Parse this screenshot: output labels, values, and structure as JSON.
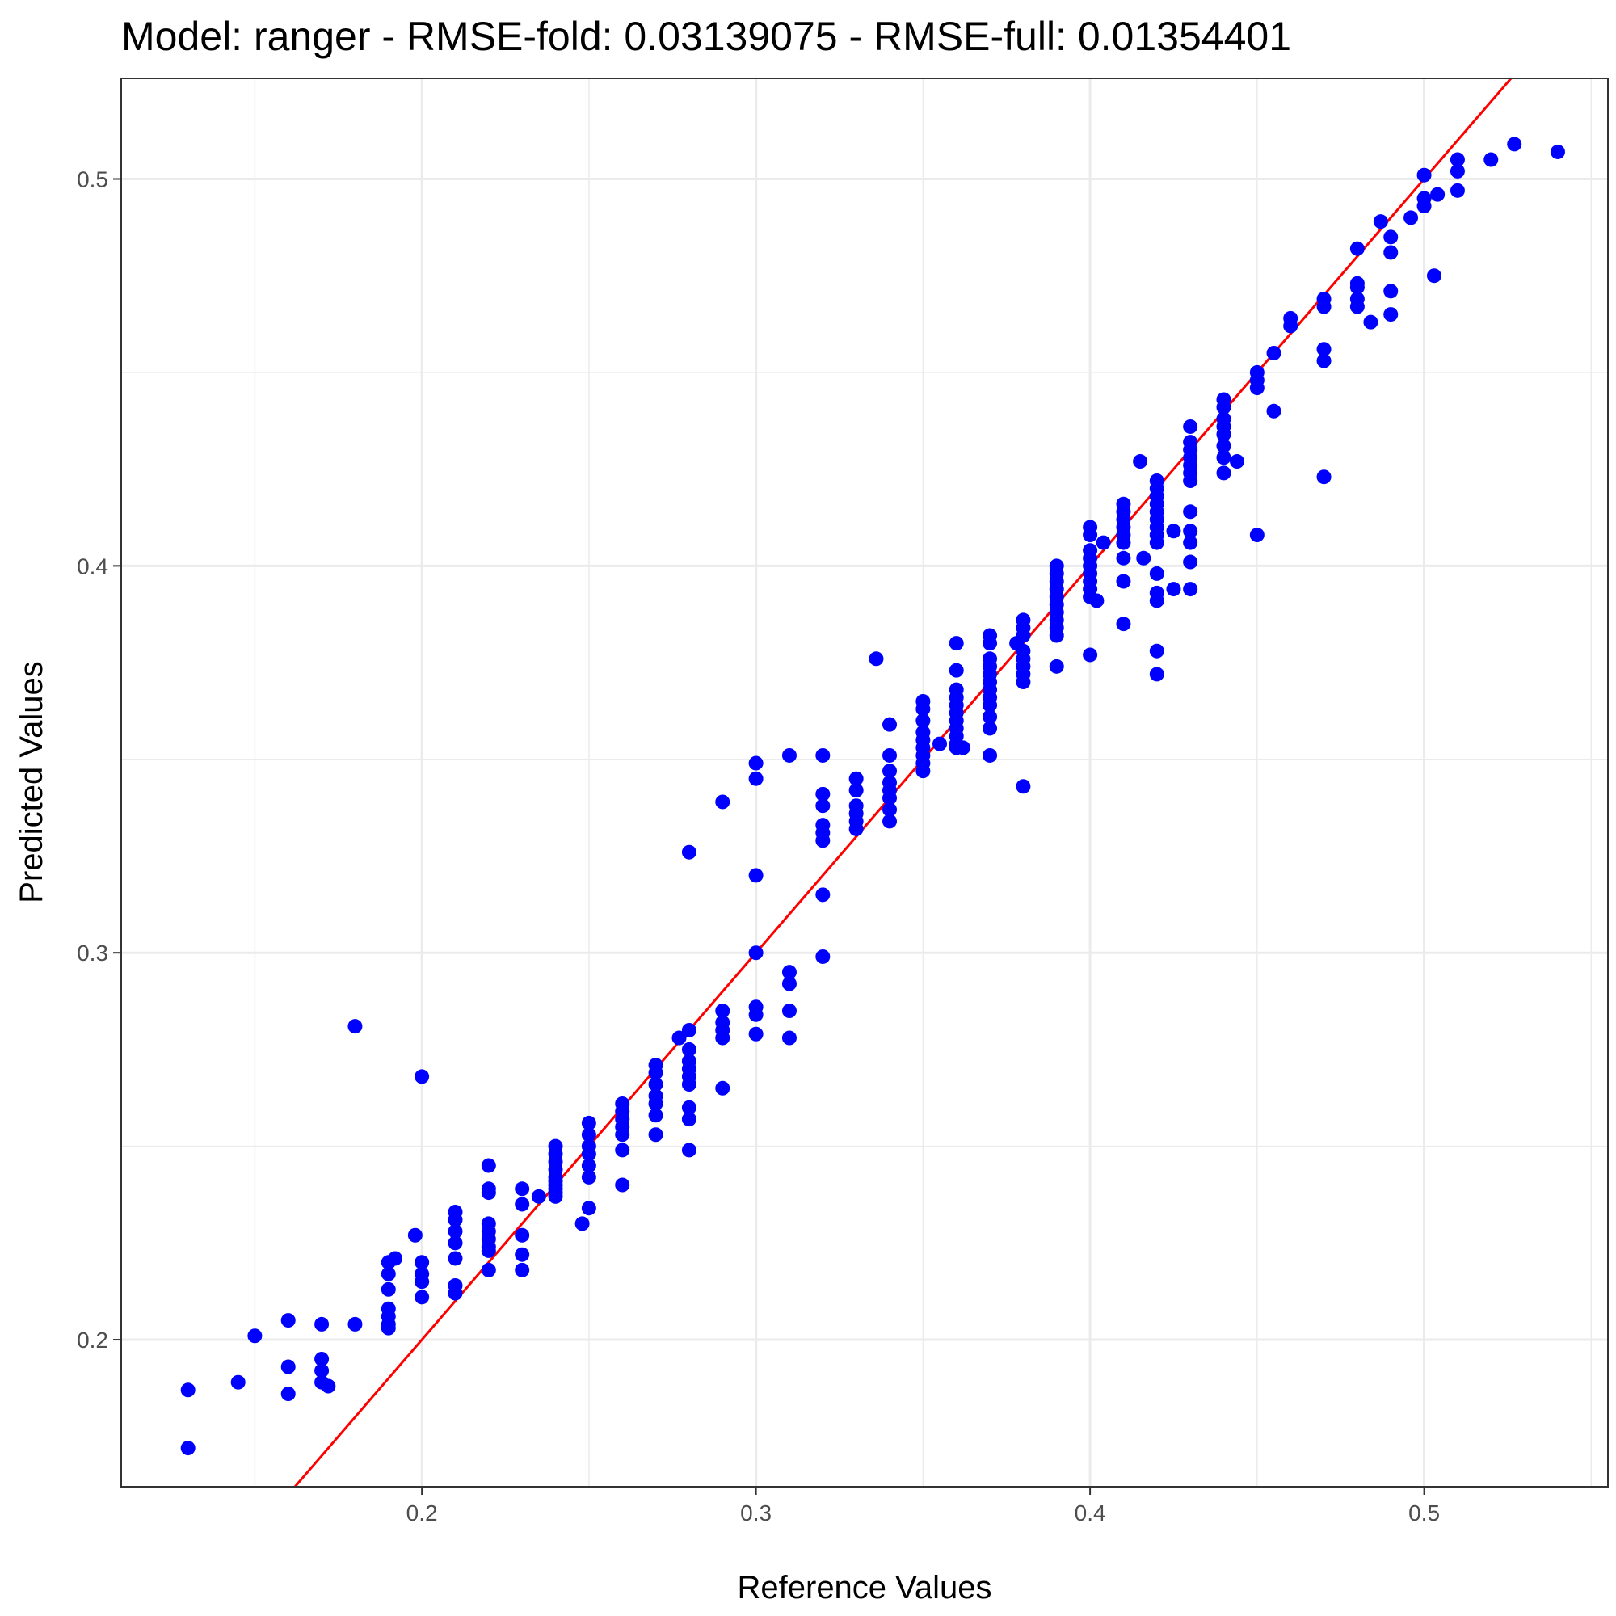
{
  "chart_data": {
    "type": "scatter",
    "title": "Model: ranger - RMSE-fold: 0.03139075 - RMSE-full: 0.01354401",
    "xlabel": "Reference Values",
    "ylabel": "Predicted Values",
    "xlim": [
      0.11,
      0.555
    ],
    "ylim": [
      0.162,
      0.526
    ],
    "x_ticks": [
      0.2,
      0.3,
      0.4,
      0.5
    ],
    "y_ticks": [
      0.2,
      0.3,
      0.4,
      0.5
    ],
    "x_tick_labels": [
      "0.2",
      "0.3",
      "0.4",
      "0.5"
    ],
    "y_tick_labels": [
      "0.2",
      "0.3",
      "0.4",
      "0.5"
    ],
    "x_minor_ticks": [
      0.15,
      0.25,
      0.35,
      0.45,
      0.55
    ],
    "y_minor_ticks": [
      0.25,
      0.35,
      0.45
    ],
    "grid": true,
    "theme": "bw",
    "point_color": "#0000ff",
    "reference_line": {
      "type": "identity",
      "slope": 1,
      "intercept": 0,
      "color": "#ff0000"
    },
    "series": [
      {
        "points": [
          [
            0.13,
            0.187
          ],
          [
            0.13,
            0.172
          ],
          [
            0.145,
            0.189
          ],
          [
            0.15,
            0.201
          ],
          [
            0.16,
            0.205
          ],
          [
            0.16,
            0.193
          ],
          [
            0.16,
            0.186
          ],
          [
            0.17,
            0.204
          ],
          [
            0.17,
            0.195
          ],
          [
            0.17,
            0.192
          ],
          [
            0.17,
            0.189
          ],
          [
            0.172,
            0.188
          ],
          [
            0.18,
            0.204
          ],
          [
            0.18,
            0.281
          ],
          [
            0.19,
            0.22
          ],
          [
            0.19,
            0.217
          ],
          [
            0.19,
            0.213
          ],
          [
            0.19,
            0.208
          ],
          [
            0.19,
            0.206
          ],
          [
            0.19,
            0.204
          ],
          [
            0.19,
            0.203
          ],
          [
            0.192,
            0.221
          ],
          [
            0.198,
            0.227
          ],
          [
            0.2,
            0.22
          ],
          [
            0.2,
            0.217
          ],
          [
            0.2,
            0.215
          ],
          [
            0.2,
            0.211
          ],
          [
            0.2,
            0.268
          ],
          [
            0.21,
            0.233
          ],
          [
            0.21,
            0.231
          ],
          [
            0.21,
            0.228
          ],
          [
            0.21,
            0.225
          ],
          [
            0.21,
            0.221
          ],
          [
            0.21,
            0.214
          ],
          [
            0.21,
            0.212
          ],
          [
            0.22,
            0.245
          ],
          [
            0.22,
            0.239
          ],
          [
            0.22,
            0.238
          ],
          [
            0.22,
            0.23
          ],
          [
            0.22,
            0.228
          ],
          [
            0.22,
            0.226
          ],
          [
            0.22,
            0.224
          ],
          [
            0.22,
            0.223
          ],
          [
            0.22,
            0.218
          ],
          [
            0.23,
            0.239
          ],
          [
            0.23,
            0.235
          ],
          [
            0.23,
            0.227
          ],
          [
            0.23,
            0.222
          ],
          [
            0.23,
            0.218
          ],
          [
            0.235,
            0.237
          ],
          [
            0.24,
            0.25
          ],
          [
            0.24,
            0.248
          ],
          [
            0.24,
            0.246
          ],
          [
            0.24,
            0.244
          ],
          [
            0.24,
            0.242
          ],
          [
            0.24,
            0.241
          ],
          [
            0.24,
            0.24
          ],
          [
            0.24,
            0.239
          ],
          [
            0.24,
            0.238
          ],
          [
            0.24,
            0.237
          ],
          [
            0.248,
            0.23
          ],
          [
            0.25,
            0.256
          ],
          [
            0.25,
            0.253
          ],
          [
            0.25,
            0.25
          ],
          [
            0.25,
            0.248
          ],
          [
            0.25,
            0.245
          ],
          [
            0.25,
            0.242
          ],
          [
            0.25,
            0.234
          ],
          [
            0.26,
            0.261
          ],
          [
            0.26,
            0.259
          ],
          [
            0.26,
            0.257
          ],
          [
            0.26,
            0.255
          ],
          [
            0.26,
            0.253
          ],
          [
            0.26,
            0.249
          ],
          [
            0.26,
            0.24
          ],
          [
            0.27,
            0.271
          ],
          [
            0.27,
            0.269
          ],
          [
            0.27,
            0.266
          ],
          [
            0.27,
            0.263
          ],
          [
            0.27,
            0.261
          ],
          [
            0.27,
            0.258
          ],
          [
            0.27,
            0.253
          ],
          [
            0.277,
            0.278
          ],
          [
            0.28,
            0.28
          ],
          [
            0.28,
            0.275
          ],
          [
            0.28,
            0.272
          ],
          [
            0.28,
            0.27
          ],
          [
            0.28,
            0.268
          ],
          [
            0.28,
            0.266
          ],
          [
            0.28,
            0.26
          ],
          [
            0.28,
            0.257
          ],
          [
            0.28,
            0.249
          ],
          [
            0.28,
            0.326
          ],
          [
            0.29,
            0.285
          ],
          [
            0.29,
            0.282
          ],
          [
            0.29,
            0.28
          ],
          [
            0.29,
            0.278
          ],
          [
            0.29,
            0.265
          ],
          [
            0.29,
            0.339
          ],
          [
            0.3,
            0.3
          ],
          [
            0.3,
            0.286
          ],
          [
            0.3,
            0.284
          ],
          [
            0.3,
            0.279
          ],
          [
            0.3,
            0.32
          ],
          [
            0.3,
            0.345
          ],
          [
            0.3,
            0.349
          ],
          [
            0.31,
            0.351
          ],
          [
            0.31,
            0.295
          ],
          [
            0.31,
            0.292
          ],
          [
            0.31,
            0.285
          ],
          [
            0.31,
            0.278
          ],
          [
            0.32,
            0.351
          ],
          [
            0.32,
            0.341
          ],
          [
            0.32,
            0.338
          ],
          [
            0.32,
            0.333
          ],
          [
            0.32,
            0.331
          ],
          [
            0.32,
            0.329
          ],
          [
            0.32,
            0.315
          ],
          [
            0.32,
            0.299
          ],
          [
            0.33,
            0.345
          ],
          [
            0.33,
            0.342
          ],
          [
            0.33,
            0.338
          ],
          [
            0.33,
            0.336
          ],
          [
            0.33,
            0.334
          ],
          [
            0.33,
            0.332
          ],
          [
            0.336,
            0.376
          ],
          [
            0.34,
            0.359
          ],
          [
            0.34,
            0.351
          ],
          [
            0.34,
            0.347
          ],
          [
            0.34,
            0.344
          ],
          [
            0.34,
            0.342
          ],
          [
            0.34,
            0.34
          ],
          [
            0.34,
            0.337
          ],
          [
            0.34,
            0.334
          ],
          [
            0.35,
            0.365
          ],
          [
            0.35,
            0.363
          ],
          [
            0.35,
            0.36
          ],
          [
            0.35,
            0.357
          ],
          [
            0.35,
            0.355
          ],
          [
            0.35,
            0.353
          ],
          [
            0.35,
            0.351
          ],
          [
            0.35,
            0.349
          ],
          [
            0.35,
            0.347
          ],
          [
            0.355,
            0.354
          ],
          [
            0.36,
            0.38
          ],
          [
            0.36,
            0.373
          ],
          [
            0.36,
            0.368
          ],
          [
            0.36,
            0.366
          ],
          [
            0.36,
            0.364
          ],
          [
            0.36,
            0.362
          ],
          [
            0.36,
            0.36
          ],
          [
            0.36,
            0.358
          ],
          [
            0.36,
            0.356
          ],
          [
            0.36,
            0.354
          ],
          [
            0.36,
            0.353
          ],
          [
            0.362,
            0.353
          ],
          [
            0.37,
            0.382
          ],
          [
            0.37,
            0.38
          ],
          [
            0.37,
            0.376
          ],
          [
            0.37,
            0.374
          ],
          [
            0.37,
            0.372
          ],
          [
            0.37,
            0.37
          ],
          [
            0.37,
            0.368
          ],
          [
            0.37,
            0.366
          ],
          [
            0.37,
            0.364
          ],
          [
            0.37,
            0.361
          ],
          [
            0.37,
            0.358
          ],
          [
            0.37,
            0.351
          ],
          [
            0.378,
            0.38
          ],
          [
            0.38,
            0.386
          ],
          [
            0.38,
            0.384
          ],
          [
            0.38,
            0.382
          ],
          [
            0.38,
            0.378
          ],
          [
            0.38,
            0.376
          ],
          [
            0.38,
            0.374
          ],
          [
            0.38,
            0.372
          ],
          [
            0.38,
            0.37
          ],
          [
            0.38,
            0.343
          ],
          [
            0.39,
            0.4
          ],
          [
            0.39,
            0.398
          ],
          [
            0.39,
            0.396
          ],
          [
            0.39,
            0.394
          ],
          [
            0.39,
            0.392
          ],
          [
            0.39,
            0.39
          ],
          [
            0.39,
            0.388
          ],
          [
            0.39,
            0.386
          ],
          [
            0.39,
            0.384
          ],
          [
            0.39,
            0.382
          ],
          [
            0.39,
            0.374
          ],
          [
            0.4,
            0.41
          ],
          [
            0.4,
            0.408
          ],
          [
            0.4,
            0.404
          ],
          [
            0.4,
            0.402
          ],
          [
            0.4,
            0.4
          ],
          [
            0.4,
            0.398
          ],
          [
            0.4,
            0.396
          ],
          [
            0.4,
            0.394
          ],
          [
            0.4,
            0.392
          ],
          [
            0.4,
            0.377
          ],
          [
            0.402,
            0.391
          ],
          [
            0.404,
            0.406
          ],
          [
            0.41,
            0.416
          ],
          [
            0.41,
            0.414
          ],
          [
            0.41,
            0.412
          ],
          [
            0.41,
            0.41
          ],
          [
            0.41,
            0.408
          ],
          [
            0.41,
            0.406
          ],
          [
            0.41,
            0.402
          ],
          [
            0.41,
            0.396
          ],
          [
            0.41,
            0.385
          ],
          [
            0.415,
            0.427
          ],
          [
            0.416,
            0.402
          ],
          [
            0.42,
            0.422
          ],
          [
            0.42,
            0.42
          ],
          [
            0.42,
            0.418
          ],
          [
            0.42,
            0.416
          ],
          [
            0.42,
            0.414
          ],
          [
            0.42,
            0.412
          ],
          [
            0.42,
            0.41
          ],
          [
            0.42,
            0.408
          ],
          [
            0.42,
            0.406
          ],
          [
            0.42,
            0.398
          ],
          [
            0.42,
            0.393
          ],
          [
            0.42,
            0.391
          ],
          [
            0.42,
            0.378
          ],
          [
            0.42,
            0.372
          ],
          [
            0.425,
            0.409
          ],
          [
            0.425,
            0.394
          ],
          [
            0.43,
            0.436
          ],
          [
            0.43,
            0.432
          ],
          [
            0.43,
            0.43
          ],
          [
            0.43,
            0.428
          ],
          [
            0.43,
            0.426
          ],
          [
            0.43,
            0.424
          ],
          [
            0.43,
            0.422
          ],
          [
            0.43,
            0.414
          ],
          [
            0.43,
            0.409
          ],
          [
            0.43,
            0.406
          ],
          [
            0.43,
            0.401
          ],
          [
            0.43,
            0.394
          ],
          [
            0.44,
            0.443
          ],
          [
            0.44,
            0.441
          ],
          [
            0.44,
            0.438
          ],
          [
            0.44,
            0.436
          ],
          [
            0.44,
            0.434
          ],
          [
            0.44,
            0.431
          ],
          [
            0.44,
            0.428
          ],
          [
            0.44,
            0.424
          ],
          [
            0.444,
            0.427
          ],
          [
            0.45,
            0.45
          ],
          [
            0.45,
            0.448
          ],
          [
            0.45,
            0.446
          ],
          [
            0.45,
            0.408
          ],
          [
            0.455,
            0.455
          ],
          [
            0.455,
            0.44
          ],
          [
            0.46,
            0.464
          ],
          [
            0.46,
            0.462
          ],
          [
            0.47,
            0.469
          ],
          [
            0.47,
            0.467
          ],
          [
            0.47,
            0.456
          ],
          [
            0.47,
            0.453
          ],
          [
            0.47,
            0.423
          ],
          [
            0.48,
            0.482
          ],
          [
            0.48,
            0.473
          ],
          [
            0.48,
            0.472
          ],
          [
            0.48,
            0.469
          ],
          [
            0.48,
            0.467
          ],
          [
            0.484,
            0.463
          ],
          [
            0.487,
            0.489
          ],
          [
            0.49,
            0.485
          ],
          [
            0.49,
            0.481
          ],
          [
            0.49,
            0.471
          ],
          [
            0.49,
            0.465
          ],
          [
            0.496,
            0.49
          ],
          [
            0.5,
            0.501
          ],
          [
            0.5,
            0.495
          ],
          [
            0.5,
            0.493
          ],
          [
            0.503,
            0.475
          ],
          [
            0.504,
            0.496
          ],
          [
            0.51,
            0.505
          ],
          [
            0.51,
            0.502
          ],
          [
            0.51,
            0.497
          ],
          [
            0.52,
            0.505
          ],
          [
            0.527,
            0.509
          ],
          [
            0.54,
            0.507
          ]
        ]
      }
    ]
  }
}
